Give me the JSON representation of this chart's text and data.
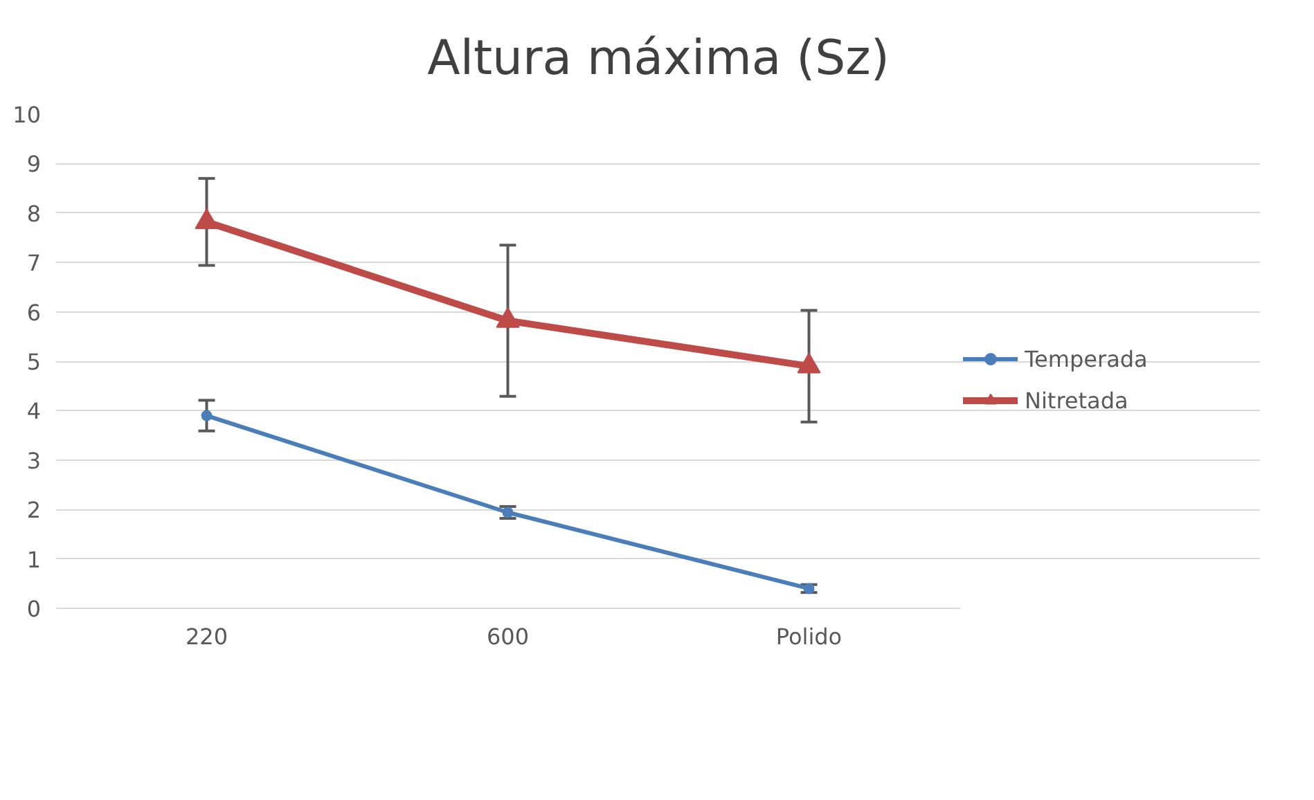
{
  "chart_data": {
    "type": "line",
    "title": "Altura máxima (Sz)",
    "categories": [
      "220",
      "600",
      "Polido"
    ],
    "series": [
      {
        "name": "Temperada",
        "color": "#4a7ebb",
        "marker": "circle",
        "values": [
          3.9,
          1.94,
          0.4
        ],
        "errors": [
          0.31,
          0.12,
          0.08
        ]
      },
      {
        "name": "Nitretada",
        "color": "#be4b48",
        "marker": "triangle",
        "values": [
          7.82,
          5.82,
          4.9
        ],
        "errors": [
          0.88,
          1.53,
          1.13
        ]
      }
    ],
    "ylim": [
      0,
      10
    ],
    "yticks": [
      0,
      1,
      2,
      3,
      4,
      5,
      6,
      7,
      8,
      9,
      10
    ],
    "grid": "y",
    "legend": "right"
  }
}
